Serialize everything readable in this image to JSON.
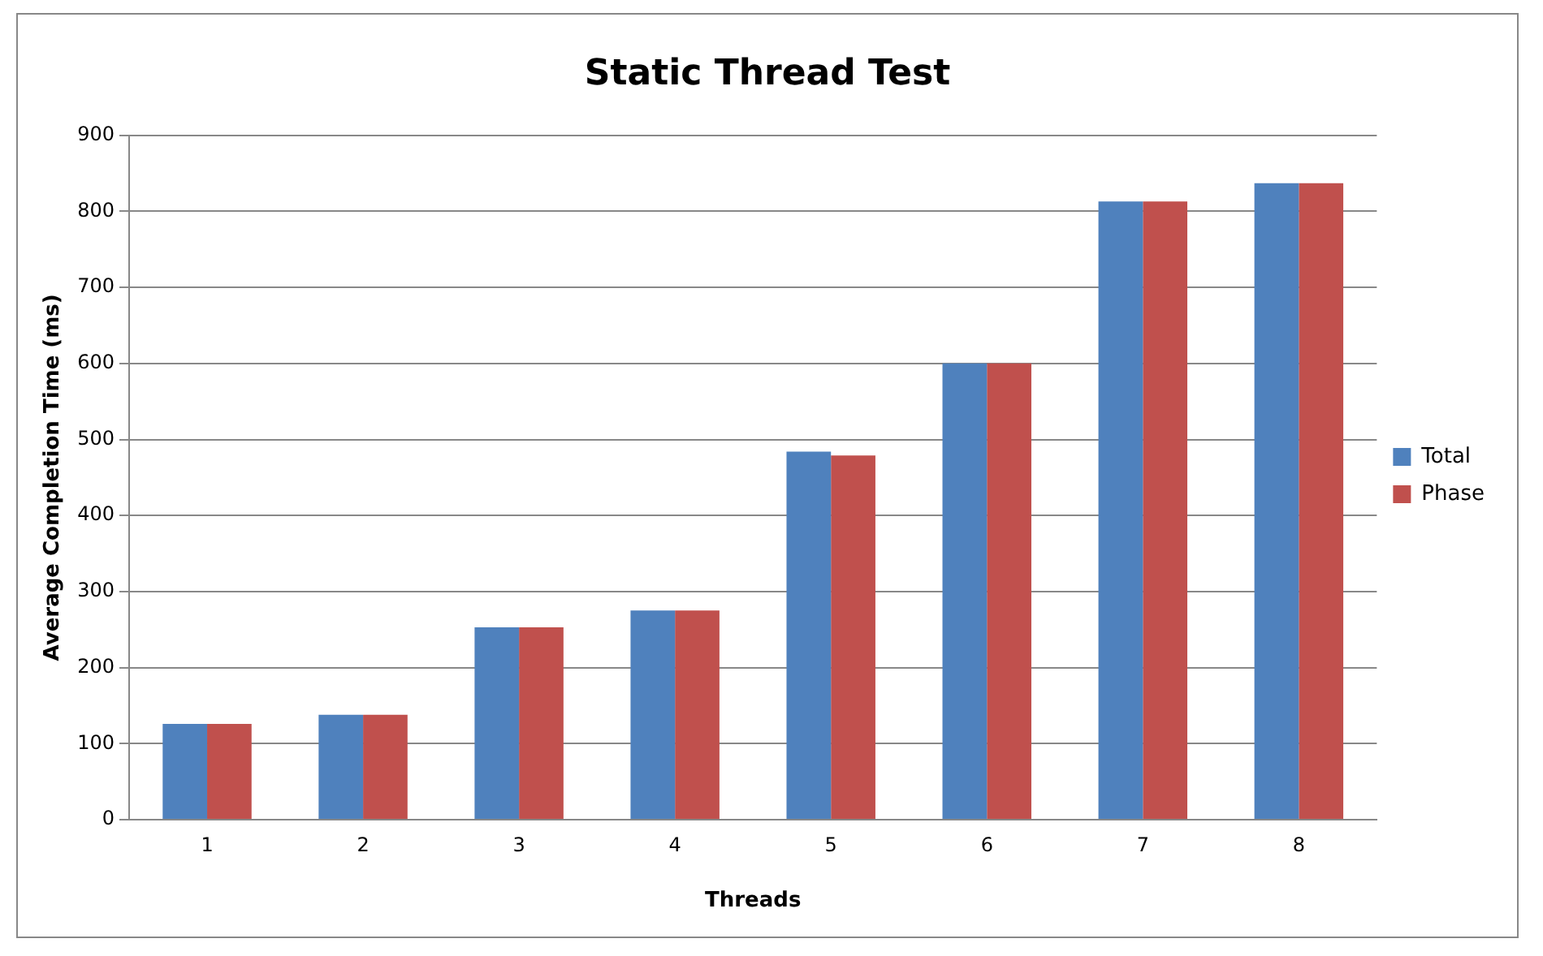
{
  "chart_data": {
    "type": "bar",
    "title": "Static Thread Test",
    "xlabel": "Threads",
    "ylabel": "Average Completion Time (ms)",
    "categories": [
      "1",
      "2",
      "3",
      "4",
      "5",
      "6",
      "7",
      "8"
    ],
    "series": [
      {
        "name": "Total",
        "color": "#4f81bd",
        "values": [
          126,
          138,
          253,
          275,
          484,
          600,
          813,
          837
        ]
      },
      {
        "name": "Phase",
        "color": "#c0504d",
        "values": [
          126,
          138,
          253,
          275,
          479,
          600,
          813,
          837
        ]
      }
    ],
    "ylim": [
      0,
      900
    ],
    "yticks": [
      0,
      100,
      200,
      300,
      400,
      500,
      600,
      700,
      800,
      900
    ],
    "grid": "y",
    "legend": "right"
  }
}
